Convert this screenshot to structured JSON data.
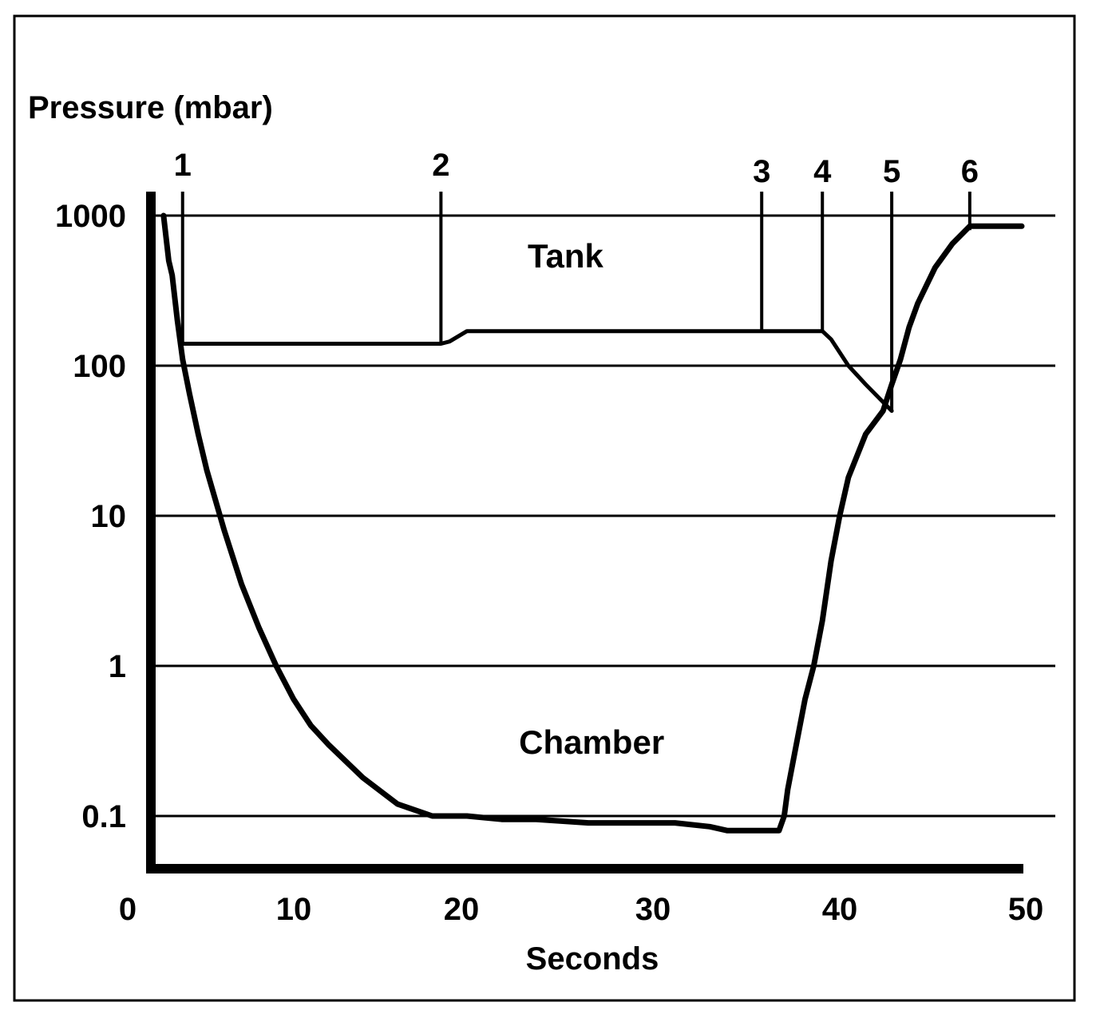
{
  "chart_data": {
    "type": "line",
    "ylabel": "Pressure (mbar)",
    "xlabel": "Seconds",
    "y_scale": "log",
    "ylim": [
      0.05,
      1000
    ],
    "xlim": [
      0,
      50
    ],
    "y_ticks": [
      {
        "value": 1000,
        "label": "1000"
      },
      {
        "value": 100,
        "label": "100"
      },
      {
        "value": 10,
        "label": "10"
      },
      {
        "value": 1,
        "label": "1"
      },
      {
        "value": 0.1,
        "label": "0.1"
      }
    ],
    "x_ticks": [
      {
        "value": 0,
        "label": "0"
      },
      {
        "value": 10,
        "label": "10"
      },
      {
        "value": 20,
        "label": "20"
      },
      {
        "value": 30,
        "label": "30"
      },
      {
        "value": 40,
        "label": "40"
      },
      {
        "value": 50,
        "label": "50"
      }
    ],
    "grid": "horizontal",
    "annotations": [
      {
        "label": "Tank",
        "x": 21.5,
        "y": 450
      },
      {
        "label": "Chamber",
        "x": 21,
        "y": 0.26
      }
    ],
    "markers": [
      {
        "label": "1",
        "x": 1.6,
        "y_bottom": 140
      },
      {
        "label": "2",
        "x": 16.5,
        "y_bottom": 140
      },
      {
        "label": "3",
        "x": 35,
        "y_bottom": 170
      },
      {
        "label": "4",
        "x": 38.5,
        "y_bottom": 170
      },
      {
        "label": "5",
        "x": 42.5,
        "y_bottom": 50
      },
      {
        "label": "6",
        "x": 47,
        "y_bottom": 800
      }
    ],
    "series": [
      {
        "name": "Tank",
        "x": [
          1.6,
          16.5,
          17,
          18,
          35,
          38.5,
          39,
          40,
          41,
          42.5
        ],
        "y": [
          140,
          140,
          145,
          170,
          170,
          170,
          150,
          100,
          75,
          50
        ]
      },
      {
        "name": "Chamber",
        "x": [
          0.5,
          0.8,
          1.0,
          1.3,
          1.6,
          2.0,
          2.5,
          3,
          4,
          5,
          6,
          7,
          8,
          9,
          10,
          12,
          14,
          16,
          18,
          20,
          22,
          25,
          28,
          30,
          32,
          33,
          35,
          36,
          36.3,
          36.5,
          37,
          37.5,
          38,
          38.5,
          39,
          39.5,
          40,
          41,
          42,
          42.5,
          43,
          43.5,
          44,
          45,
          46,
          47,
          48,
          50
        ],
        "y": [
          1000,
          500,
          400,
          200,
          110,
          65,
          35,
          20,
          8,
          3.5,
          1.8,
          1.0,
          0.6,
          0.4,
          0.3,
          0.18,
          0.12,
          0.1,
          0.1,
          0.095,
          0.095,
          0.09,
          0.09,
          0.09,
          0.085,
          0.08,
          0.08,
          0.08,
          0.1,
          0.15,
          0.3,
          0.6,
          1.0,
          2.0,
          5,
          10,
          18,
          35,
          50,
          75,
          110,
          180,
          260,
          450,
          650,
          850,
          850,
          850
        ]
      }
    ]
  }
}
